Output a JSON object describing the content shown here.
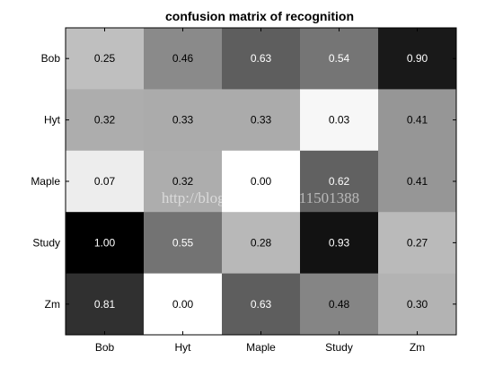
{
  "chart_data": {
    "type": "heatmap",
    "title": "confusion matrix of recognition",
    "xlabel": "",
    "ylabel": "",
    "x_categories": [
      "Bob",
      "Hyt",
      "Maple",
      "Study",
      "Zm"
    ],
    "y_categories": [
      "Bob",
      "Hyt",
      "Maple",
      "Study",
      "Zm"
    ],
    "colormap": "gray-reversed",
    "value_range": [
      0,
      1
    ],
    "values": [
      [
        0.25,
        0.46,
        0.63,
        0.54,
        0.9
      ],
      [
        0.32,
        0.33,
        0.33,
        0.03,
        0.41
      ],
      [
        0.07,
        0.32,
        0.0,
        0.62,
        0.41
      ],
      [
        1.0,
        0.55,
        0.28,
        0.93,
        0.27
      ],
      [
        0.81,
        0.0,
        0.63,
        0.48,
        0.3
      ]
    ],
    "value_format": "0.00"
  },
  "watermark": "http://blog.csdn.net/u011501388",
  "colors": {
    "axis": "#000000",
    "text_on_light": "#000000",
    "text_on_dark": "#ffffff"
  }
}
